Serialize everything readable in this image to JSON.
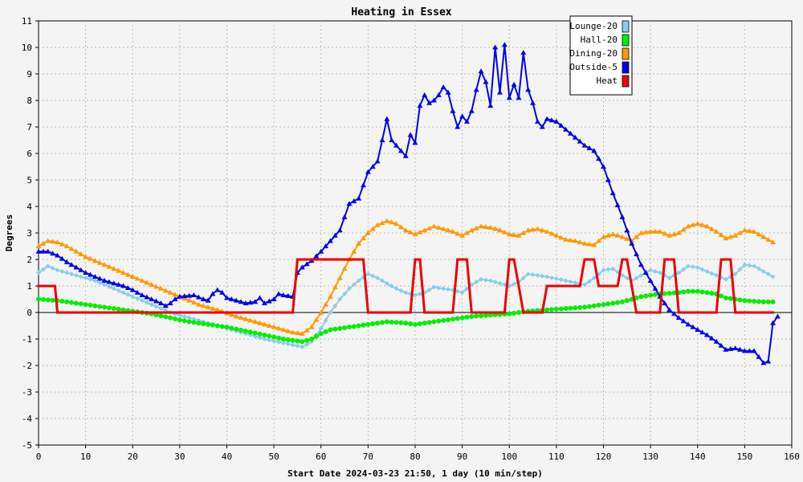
{
  "chart_data": {
    "type": "line",
    "title": "Heating in Essex",
    "xlabel": "Start Date 2024-03-23 21:50, 1 day (10 min/step)",
    "ylabel": "Degrees",
    "xlim": [
      0,
      160
    ],
    "ylim": [
      -5,
      11
    ],
    "x_ticks": [
      0,
      10,
      20,
      30,
      40,
      50,
      60,
      70,
      80,
      90,
      100,
      110,
      120,
      130,
      140,
      150,
      160
    ],
    "y_ticks": [
      -5,
      -4,
      -3,
      -2,
      -1,
      0,
      1,
      2,
      3,
      4,
      5,
      6,
      7,
      8,
      9,
      10,
      11
    ],
    "grid": true,
    "legend_position": "top-right",
    "series": [
      {
        "name": "Lounge-20",
        "color": "#87ceeb",
        "marker": "diamond",
        "points": [
          [
            0,
            1.5
          ],
          [
            2,
            1.75
          ],
          [
            4,
            1.6
          ],
          [
            8,
            1.4
          ],
          [
            12,
            1.2
          ],
          [
            16,
            0.9
          ],
          [
            20,
            0.6
          ],
          [
            24,
            0.3
          ],
          [
            28,
            0.0
          ],
          [
            32,
            -0.2
          ],
          [
            36,
            -0.4
          ],
          [
            40,
            -0.6
          ],
          [
            44,
            -0.8
          ],
          [
            48,
            -1.0
          ],
          [
            52,
            -1.15
          ],
          [
            56,
            -1.3
          ],
          [
            58,
            -1.1
          ],
          [
            60,
            -0.6
          ],
          [
            62,
            0.0
          ],
          [
            64,
            0.5
          ],
          [
            66,
            0.9
          ],
          [
            68,
            1.2
          ],
          [
            70,
            1.45
          ],
          [
            72,
            1.3
          ],
          [
            74,
            1.1
          ],
          [
            76,
            0.9
          ],
          [
            78,
            0.75
          ],
          [
            80,
            0.65
          ],
          [
            82,
            0.75
          ],
          [
            84,
            0.95
          ],
          [
            88,
            0.85
          ],
          [
            90,
            0.75
          ],
          [
            92,
            1.05
          ],
          [
            94,
            1.25
          ],
          [
            96,
            1.2
          ],
          [
            98,
            1.1
          ],
          [
            100,
            1.0
          ],
          [
            102,
            1.15
          ],
          [
            104,
            1.45
          ],
          [
            108,
            1.35
          ],
          [
            112,
            1.2
          ],
          [
            116,
            1.05
          ],
          [
            118,
            1.3
          ],
          [
            120,
            1.6
          ],
          [
            122,
            1.65
          ],
          [
            124,
            1.4
          ],
          [
            126,
            1.2
          ],
          [
            128,
            1.4
          ],
          [
            130,
            1.6
          ],
          [
            132,
            1.5
          ],
          [
            134,
            1.3
          ],
          [
            136,
            1.5
          ],
          [
            138,
            1.75
          ],
          [
            140,
            1.7
          ],
          [
            142,
            1.55
          ],
          [
            144,
            1.4
          ],
          [
            146,
            1.25
          ],
          [
            148,
            1.45
          ],
          [
            150,
            1.8
          ],
          [
            152,
            1.75
          ],
          [
            154,
            1.55
          ],
          [
            156,
            1.35
          ]
        ]
      },
      {
        "name": "Hall-20",
        "color": "#00ee00",
        "marker": "circle",
        "points": [
          [
            0,
            0.5
          ],
          [
            4,
            0.45
          ],
          [
            8,
            0.35
          ],
          [
            12,
            0.25
          ],
          [
            16,
            0.15
          ],
          [
            20,
            0.05
          ],
          [
            24,
            -0.05
          ],
          [
            28,
            -0.2
          ],
          [
            32,
            -0.35
          ],
          [
            36,
            -0.45
          ],
          [
            40,
            -0.55
          ],
          [
            44,
            -0.7
          ],
          [
            48,
            -0.85
          ],
          [
            52,
            -1.0
          ],
          [
            56,
            -1.1
          ],
          [
            58,
            -1.0
          ],
          [
            60,
            -0.8
          ],
          [
            62,
            -0.65
          ],
          [
            66,
            -0.55
          ],
          [
            70,
            -0.45
          ],
          [
            74,
            -0.35
          ],
          [
            78,
            -0.4
          ],
          [
            80,
            -0.45
          ],
          [
            84,
            -0.35
          ],
          [
            88,
            -0.25
          ],
          [
            92,
            -0.15
          ],
          [
            96,
            -0.1
          ],
          [
            100,
            -0.05
          ],
          [
            104,
            0.05
          ],
          [
            108,
            0.1
          ],
          [
            112,
            0.15
          ],
          [
            116,
            0.2
          ],
          [
            120,
            0.3
          ],
          [
            124,
            0.4
          ],
          [
            128,
            0.6
          ],
          [
            132,
            0.7
          ],
          [
            136,
            0.75
          ],
          [
            138,
            0.8
          ],
          [
            140,
            0.8
          ],
          [
            144,
            0.7
          ],
          [
            146,
            0.55
          ],
          [
            150,
            0.45
          ],
          [
            154,
            0.4
          ],
          [
            156,
            0.4
          ]
        ]
      },
      {
        "name": "Dining-20",
        "color": "#ff9900",
        "marker": "triangle",
        "points": [
          [
            0,
            2.5
          ],
          [
            2,
            2.7
          ],
          [
            4,
            2.65
          ],
          [
            6,
            2.5
          ],
          [
            8,
            2.3
          ],
          [
            10,
            2.1
          ],
          [
            14,
            1.8
          ],
          [
            18,
            1.5
          ],
          [
            22,
            1.2
          ],
          [
            26,
            0.9
          ],
          [
            30,
            0.6
          ],
          [
            34,
            0.3
          ],
          [
            38,
            0.1
          ],
          [
            42,
            -0.15
          ],
          [
            46,
            -0.35
          ],
          [
            50,
            -0.55
          ],
          [
            54,
            -0.75
          ],
          [
            56,
            -0.8
          ],
          [
            58,
            -0.55
          ],
          [
            60,
            0.0
          ],
          [
            62,
            0.6
          ],
          [
            64,
            1.3
          ],
          [
            66,
            2.0
          ],
          [
            68,
            2.6
          ],
          [
            70,
            3.0
          ],
          [
            72,
            3.3
          ],
          [
            74,
            3.45
          ],
          [
            76,
            3.35
          ],
          [
            78,
            3.1
          ],
          [
            80,
            2.95
          ],
          [
            82,
            3.1
          ],
          [
            84,
            3.25
          ],
          [
            86,
            3.15
          ],
          [
            88,
            3.05
          ],
          [
            90,
            2.9
          ],
          [
            92,
            3.1
          ],
          [
            94,
            3.25
          ],
          [
            96,
            3.2
          ],
          [
            98,
            3.1
          ],
          [
            100,
            2.95
          ],
          [
            102,
            2.9
          ],
          [
            104,
            3.1
          ],
          [
            106,
            3.15
          ],
          [
            108,
            3.05
          ],
          [
            110,
            2.9
          ],
          [
            112,
            2.75
          ],
          [
            114,
            2.7
          ],
          [
            116,
            2.6
          ],
          [
            118,
            2.55
          ],
          [
            120,
            2.85
          ],
          [
            122,
            2.95
          ],
          [
            124,
            2.85
          ],
          [
            126,
            2.7
          ],
          [
            128,
            3.0
          ],
          [
            130,
            3.05
          ],
          [
            132,
            3.05
          ],
          [
            134,
            2.9
          ],
          [
            136,
            3.0
          ],
          [
            138,
            3.25
          ],
          [
            140,
            3.35
          ],
          [
            142,
            3.25
          ],
          [
            144,
            3.05
          ],
          [
            146,
            2.8
          ],
          [
            148,
            2.9
          ],
          [
            150,
            3.1
          ],
          [
            152,
            3.05
          ],
          [
            154,
            2.85
          ],
          [
            156,
            2.65
          ]
        ]
      },
      {
        "name": "Outside-5",
        "color": "#0000ee",
        "marker": "triangle",
        "points": [
          [
            0,
            2.3
          ],
          [
            2,
            2.3
          ],
          [
            4,
            2.15
          ],
          [
            6,
            1.9
          ],
          [
            8,
            1.7
          ],
          [
            10,
            1.5
          ],
          [
            12,
            1.35
          ],
          [
            14,
            1.2
          ],
          [
            16,
            1.1
          ],
          [
            18,
            1.0
          ],
          [
            20,
            0.85
          ],
          [
            22,
            0.65
          ],
          [
            24,
            0.5
          ],
          [
            26,
            0.35
          ],
          [
            27,
            0.25
          ],
          [
            28,
            0.35
          ],
          [
            29,
            0.5
          ],
          [
            30,
            0.6
          ],
          [
            33,
            0.65
          ],
          [
            35,
            0.5
          ],
          [
            36,
            0.45
          ],
          [
            37,
            0.7
          ],
          [
            38,
            0.85
          ],
          [
            39,
            0.75
          ],
          [
            40,
            0.55
          ],
          [
            42,
            0.45
          ],
          [
            44,
            0.35
          ],
          [
            46,
            0.4
          ],
          [
            47,
            0.55
          ],
          [
            48,
            0.35
          ],
          [
            50,
            0.5
          ],
          [
            51,
            0.7
          ],
          [
            52,
            0.65
          ],
          [
            54,
            0.6
          ],
          [
            55,
            1.5
          ],
          [
            56,
            1.7
          ],
          [
            58,
            1.95
          ],
          [
            60,
            2.3
          ],
          [
            62,
            2.7
          ],
          [
            64,
            3.1
          ],
          [
            65,
            3.6
          ],
          [
            66,
            4.1
          ],
          [
            68,
            4.3
          ],
          [
            69,
            4.8
          ],
          [
            70,
            5.3
          ],
          [
            71,
            5.5
          ],
          [
            72,
            5.7
          ],
          [
            73,
            6.5
          ],
          [
            74,
            7.3
          ],
          [
            75,
            6.5
          ],
          [
            77,
            6.1
          ],
          [
            78,
            5.9
          ],
          [
            79,
            6.7
          ],
          [
            80,
            6.4
          ],
          [
            81,
            7.8
          ],
          [
            82,
            8.2
          ],
          [
            83,
            7.9
          ],
          [
            84,
            8.0
          ],
          [
            85,
            8.2
          ],
          [
            86,
            8.5
          ],
          [
            87,
            8.3
          ],
          [
            88,
            7.6
          ],
          [
            89,
            7.0
          ],
          [
            90,
            7.4
          ],
          [
            91,
            7.2
          ],
          [
            92,
            7.6
          ],
          [
            93,
            8.4
          ],
          [
            94,
            9.1
          ],
          [
            95,
            8.7
          ],
          [
            96,
            7.8
          ],
          [
            97,
            10.0
          ],
          [
            98,
            8.3
          ],
          [
            99,
            10.1
          ],
          [
            100,
            8.1
          ],
          [
            101,
            8.6
          ],
          [
            102,
            8.1
          ],
          [
            103,
            9.8
          ],
          [
            104,
            8.4
          ],
          [
            105,
            7.9
          ],
          [
            106,
            7.2
          ],
          [
            107,
            7.0
          ],
          [
            108,
            7.3
          ],
          [
            110,
            7.2
          ],
          [
            112,
            6.9
          ],
          [
            114,
            6.6
          ],
          [
            116,
            6.3
          ],
          [
            118,
            6.1
          ],
          [
            120,
            5.5
          ],
          [
            122,
            4.5
          ],
          [
            124,
            3.6
          ],
          [
            126,
            2.6
          ],
          [
            128,
            1.8
          ],
          [
            130,
            1.2
          ],
          [
            132,
            0.6
          ],
          [
            134,
            0.1
          ],
          [
            136,
            -0.2
          ],
          [
            138,
            -0.45
          ],
          [
            140,
            -0.65
          ],
          [
            142,
            -0.85
          ],
          [
            144,
            -1.1
          ],
          [
            146,
            -1.4
          ],
          [
            148,
            -1.35
          ],
          [
            150,
            -1.45
          ],
          [
            152,
            -1.45
          ],
          [
            154,
            -1.9
          ],
          [
            155,
            -1.85
          ],
          [
            156,
            -0.4
          ],
          [
            157,
            -0.15
          ]
        ]
      },
      {
        "name": "Heat",
        "color": "#ee0000",
        "marker": "square",
        "points": [
          [
            0,
            1
          ],
          [
            3.5,
            1
          ],
          [
            4,
            0
          ],
          [
            54,
            0
          ],
          [
            55,
            2
          ],
          [
            69,
            2
          ],
          [
            70,
            0
          ],
          [
            79,
            0
          ],
          [
            80,
            2
          ],
          [
            81,
            2
          ],
          [
            82,
            0
          ],
          [
            88,
            0
          ],
          [
            89,
            2
          ],
          [
            91,
            2
          ],
          [
            92,
            0
          ],
          [
            99,
            0
          ],
          [
            100,
            2
          ],
          [
            101,
            2
          ],
          [
            102,
            1
          ],
          [
            103,
            0
          ],
          [
            107,
            0
          ],
          [
            108,
            1
          ],
          [
            115,
            1
          ],
          [
            116,
            2
          ],
          [
            118,
            2
          ],
          [
            119,
            1
          ],
          [
            123,
            1
          ],
          [
            124,
            2
          ],
          [
            125,
            2
          ],
          [
            126,
            1
          ],
          [
            127,
            0
          ],
          [
            132,
            0
          ],
          [
            133,
            2
          ],
          [
            135,
            2
          ],
          [
            136,
            0
          ],
          [
            144,
            0
          ],
          [
            145,
            2
          ],
          [
            147,
            2
          ],
          [
            148,
            0
          ],
          [
            156,
            0
          ]
        ]
      }
    ]
  }
}
